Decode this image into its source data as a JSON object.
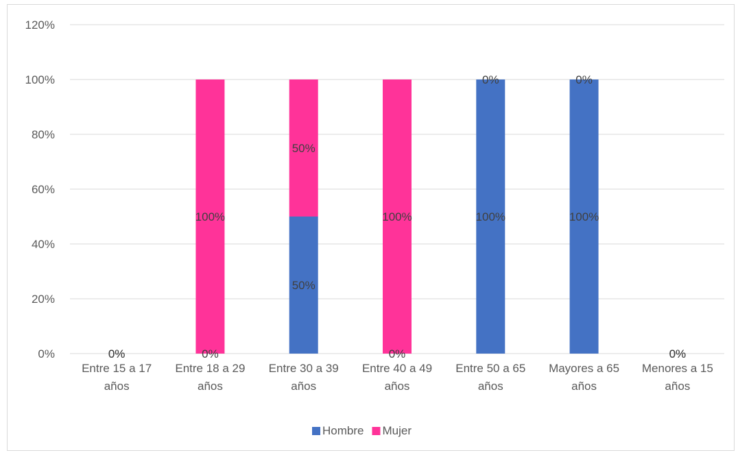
{
  "chart_data": {
    "type": "bar",
    "stacked": true,
    "categories": [
      [
        "Entre 15 a 17",
        "años"
      ],
      [
        "Entre 18 a 29",
        "años"
      ],
      [
        "Entre 30 a 39",
        "años"
      ],
      [
        "Entre 40 a 49",
        "años"
      ],
      [
        "Entre 50 a 65",
        "años"
      ],
      [
        "Mayores a 65",
        "años"
      ],
      [
        "Menores a 15",
        "años"
      ]
    ],
    "series": [
      {
        "name": "Hombre",
        "color": "#4472c4",
        "values": [
          0,
          0,
          50,
          0,
          100,
          100,
          0
        ],
        "labels": [
          "0%",
          "0%",
          "50%",
          "0%",
          "100%",
          "100%",
          "0%"
        ]
      },
      {
        "name": "Mujer",
        "color": "#ff3399",
        "values": [
          0,
          100,
          50,
          100,
          0,
          0,
          0
        ],
        "labels": [
          "0%",
          "100%",
          "50%",
          "100%",
          "0%",
          "0%",
          "0%"
        ]
      }
    ],
    "yticks": [
      "0%",
      "20%",
      "40%",
      "60%",
      "80%",
      "100%",
      "120%"
    ],
    "ylim": [
      0,
      120
    ],
    "grid": true,
    "legend_position": "bottom"
  }
}
